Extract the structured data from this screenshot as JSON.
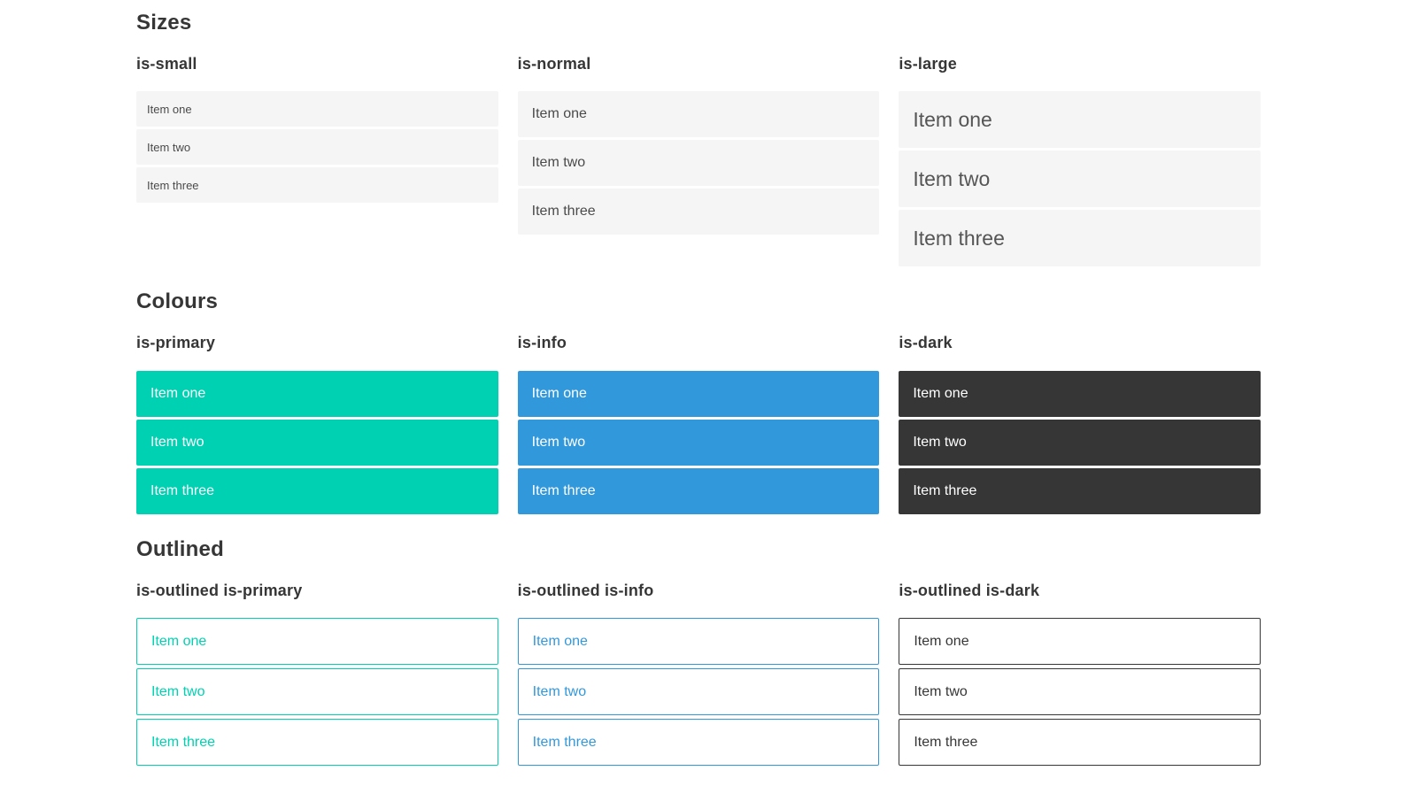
{
  "colors": {
    "primary": "#00d1b2",
    "info": "#3298dc",
    "dark": "#363636",
    "light_item_background": "#f5f5f5",
    "body_text": "#4a4a4a",
    "heading_text": "#363636",
    "item_text_on_color": "#ffffff",
    "page_background": "#ffffff"
  },
  "sections": [
    {
      "title": "Sizes",
      "columns": [
        {
          "label": "is-small",
          "variant": "small",
          "items": [
            "Item one",
            "Item two",
            "Item three"
          ]
        },
        {
          "label": "is-normal",
          "variant": "normal",
          "items": [
            "Item one",
            "Item two",
            "Item three"
          ]
        },
        {
          "label": "is-large",
          "variant": "large",
          "items": [
            "Item one",
            "Item two",
            "Item three"
          ]
        }
      ]
    },
    {
      "title": "Colours",
      "columns": [
        {
          "label": "is-primary",
          "variant": "primary",
          "items": [
            "Item one",
            "Item two",
            "Item three"
          ]
        },
        {
          "label": "is-info",
          "variant": "info",
          "items": [
            "Item one",
            "Item two",
            "Item three"
          ]
        },
        {
          "label": "is-dark",
          "variant": "dark",
          "items": [
            "Item one",
            "Item two",
            "Item three"
          ]
        }
      ]
    },
    {
      "title": "Outlined",
      "columns": [
        {
          "label": "is-outlined is-primary",
          "variant": "outlined-primary",
          "items": [
            "Item one",
            "Item two",
            "Item three"
          ]
        },
        {
          "label": "is-outlined is-info",
          "variant": "outlined-info",
          "items": [
            "Item one",
            "Item two",
            "Item three"
          ]
        },
        {
          "label": "is-outlined is-dark",
          "variant": "outlined-dark",
          "items": [
            "Item one",
            "Item two",
            "Item three"
          ]
        }
      ]
    }
  ]
}
